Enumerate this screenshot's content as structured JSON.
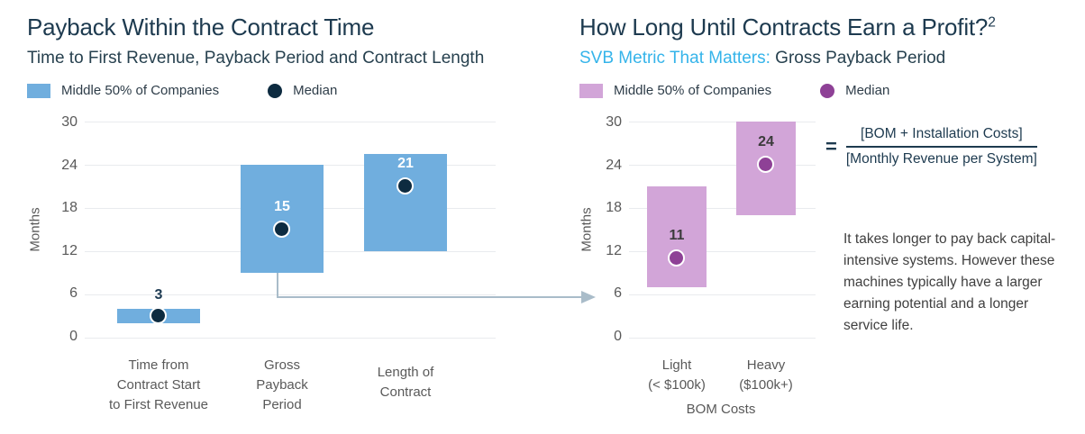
{
  "page": {
    "background": "#ffffff",
    "accent_navy": "#1d3a4f",
    "accent_cyan": "#35b4ea",
    "gridline_color": "#e9ebee",
    "arrow_color": "#a9bcc9"
  },
  "chart_data": [
    {
      "type": "bar",
      "subtype": "floating-range-with-median",
      "title": "Payback Within the Contract Time",
      "subtitle": "Time to First Revenue, Payback Period and Contract Length",
      "legend": [
        "Middle 50% of Companies",
        "Median"
      ],
      "ylabel": "Months",
      "xlabel": "",
      "ylim": [
        0,
        30
      ],
      "yticks": [
        0,
        6,
        12,
        18,
        24,
        30
      ],
      "yticks_display": [
        "30",
        "24",
        "18",
        "12",
        "6",
        "0"
      ],
      "grid": true,
      "bar_color": "#70aede",
      "median_color": "#0d2b40",
      "bars": [
        {
          "category": "Time from Contract Start to First Revenue",
          "lines": [
            "Time from",
            "Contract Start",
            "to First Revenue"
          ],
          "low": 2,
          "high": 4,
          "median": 3,
          "label": "3",
          "label_pos": "above",
          "label_color": "#1d3a52"
        },
        {
          "category": "Gross Payback Period",
          "lines": [
            "Gross",
            "Payback",
            "Period"
          ],
          "low": 9,
          "high": 24,
          "median": 15,
          "label": "15",
          "label_pos": "inside",
          "label_color": "#ffffff"
        },
        {
          "category": "Length of Contract",
          "lines": [
            "Length of",
            "Contract"
          ],
          "low": 12,
          "high": 25.5,
          "median": 21,
          "label": "21",
          "label_pos": "inside",
          "label_color": "#ffffff"
        }
      ]
    },
    {
      "type": "bar",
      "subtype": "floating-range-with-median",
      "title": "How Long Until Contracts Earn a Profit?",
      "title_superscript": "2",
      "subtitle_em": "SVB Metric That Matters:",
      "subtitle_rest": "Gross Payback Period",
      "legend": [
        "Middle 50% of Companies",
        "Median"
      ],
      "ylabel": "Months",
      "xlabel": "BOM Costs",
      "ylim": [
        0,
        30
      ],
      "yticks": [
        0,
        6,
        12,
        18,
        24,
        30
      ],
      "yticks_display": [
        "30",
        "24",
        "18",
        "12",
        "6",
        "0"
      ],
      "grid": true,
      "bar_color": "#d2a5d8",
      "median_color": "#8e4196",
      "bars": [
        {
          "category": "Light (< $100k)",
          "lines": [
            "Light",
            "(< $100k)"
          ],
          "low": 7,
          "high": 21,
          "median": 11,
          "label": "11",
          "label_pos": "inside",
          "label_color": "#3b3b3b"
        },
        {
          "category": "Heavy ($100k+)",
          "lines": [
            "Heavy",
            "($100k+)"
          ],
          "low": 17,
          "high": 30,
          "median": 24,
          "label": "24",
          "label_pos": "inside",
          "label_color": "#3b3b3b"
        }
      ]
    }
  ],
  "formula": {
    "equals_sign": "=",
    "numerator": "[BOM + Installation Costs]",
    "denominator": "[Monthly Revenue per System]"
  },
  "annotation": {
    "text": "It takes longer to pay back capital-intensive systems. However these machines typically have a larger earning potential and a longer service life."
  }
}
